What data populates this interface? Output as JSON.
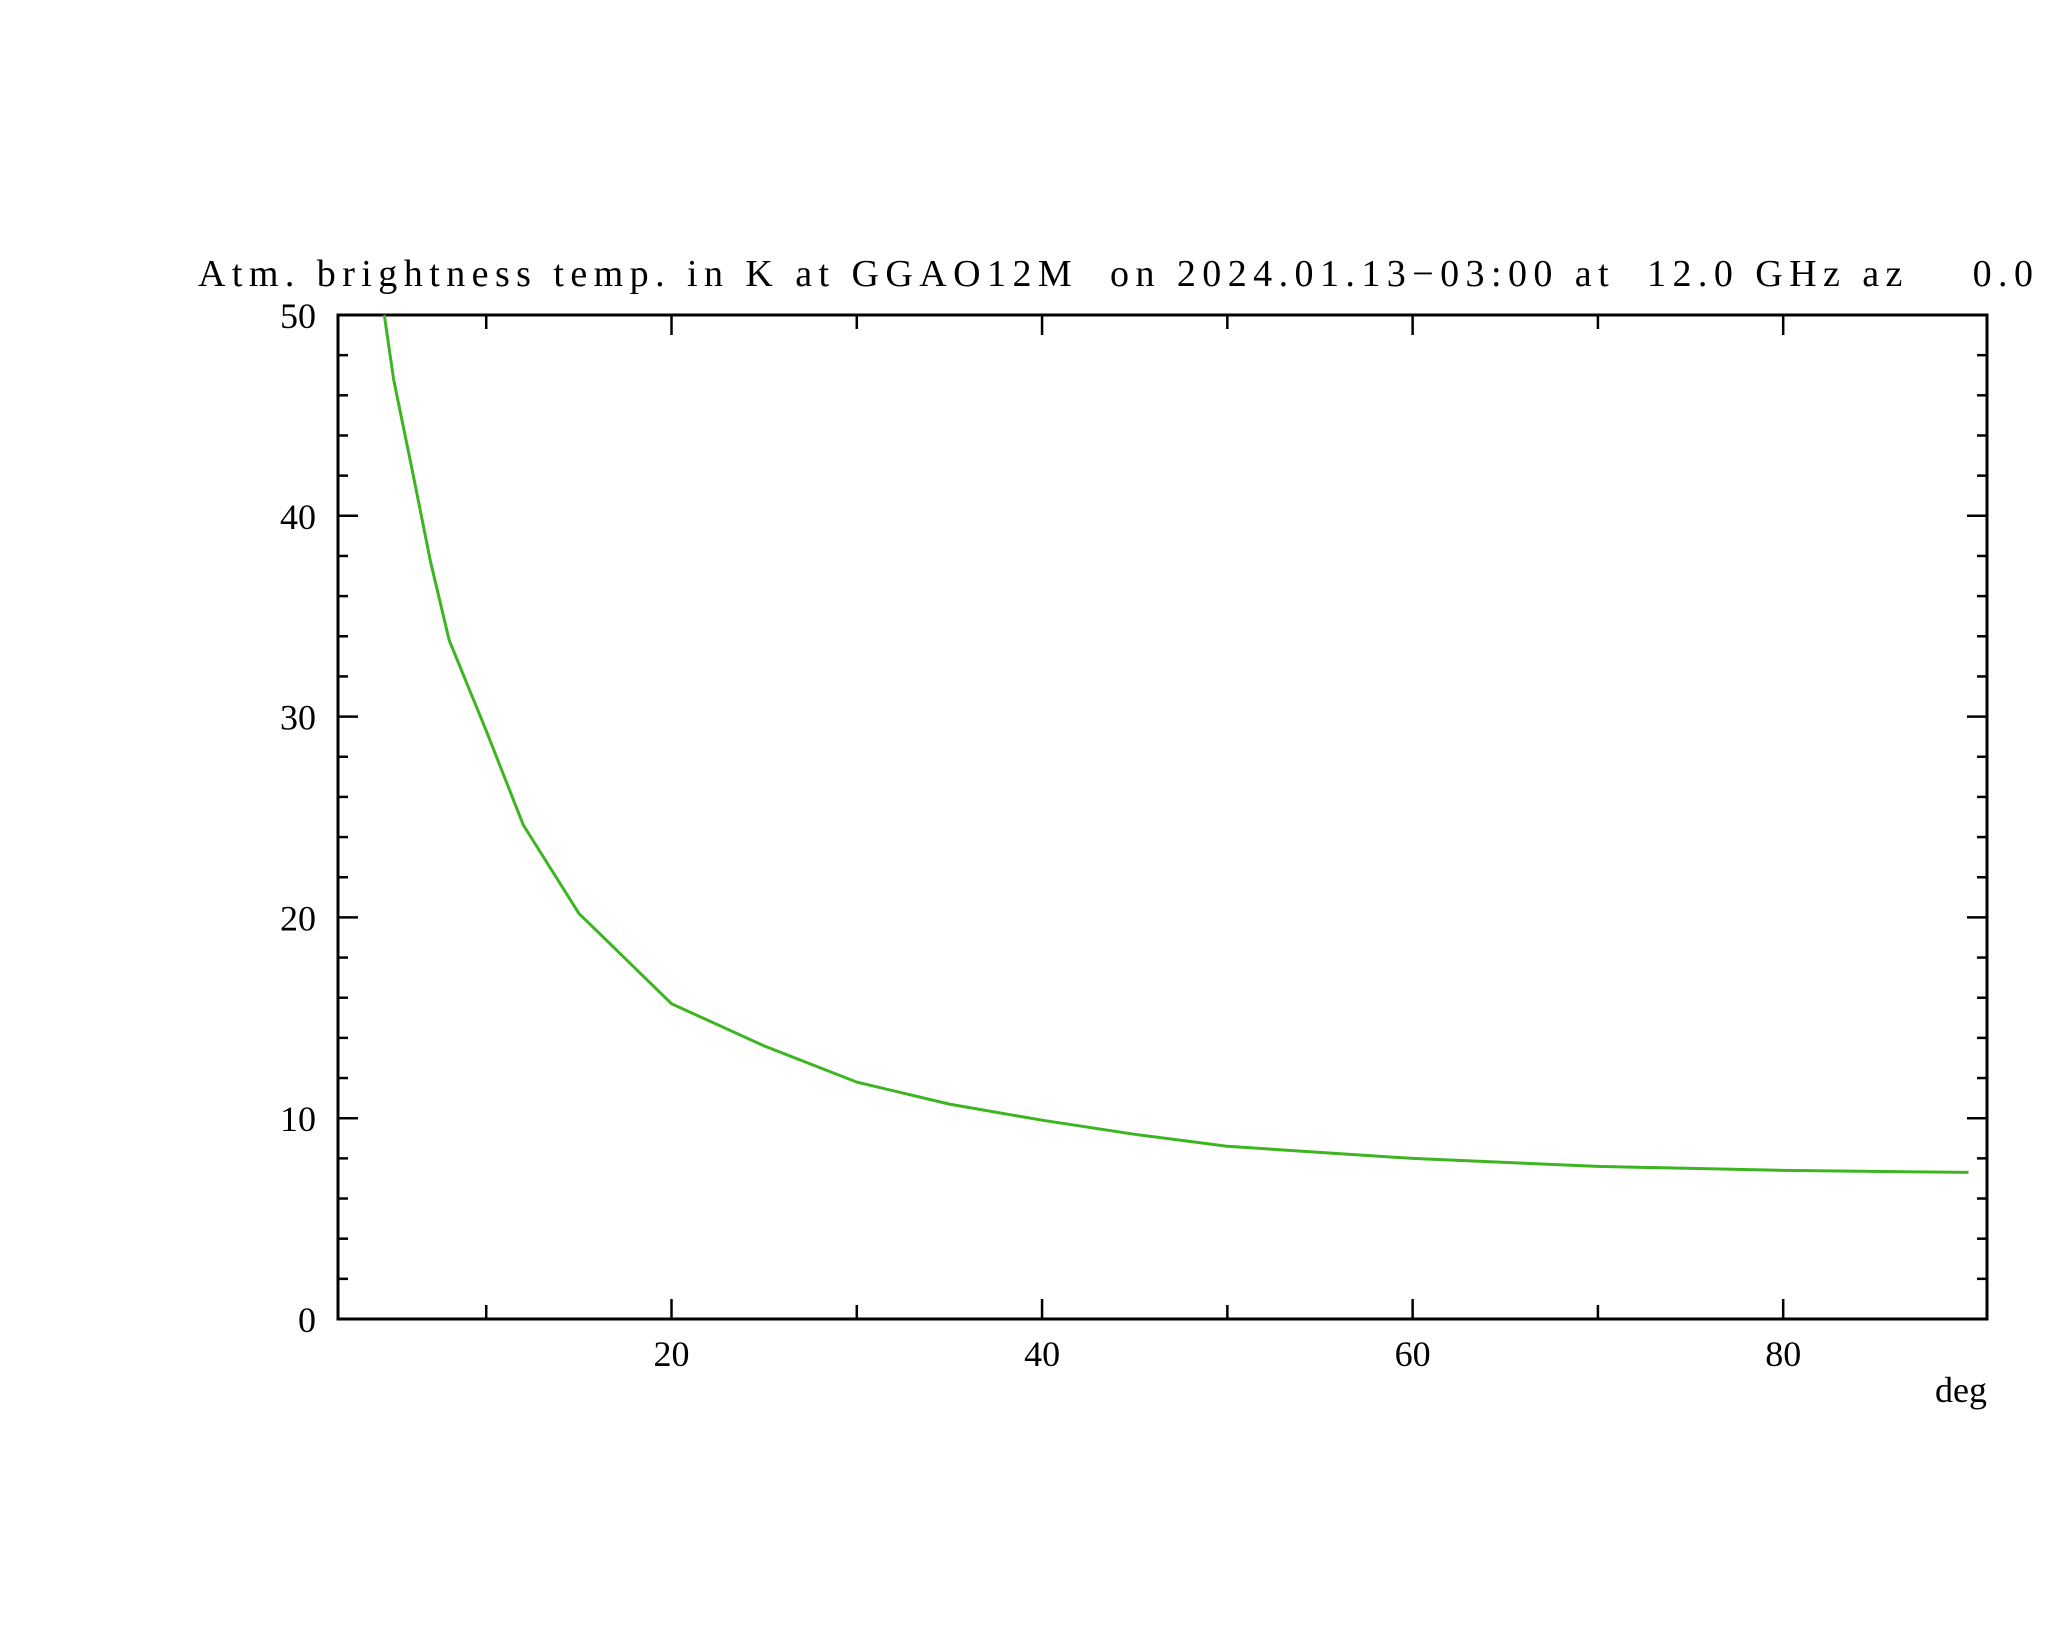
{
  "chart_data": {
    "type": "line",
    "title": "Atm. brightness temp. in K at GGAO12M  on 2024.01.13−03:00 at  12.0 GHz az    0.0",
    "x_label": "deg",
    "xlim": [
      2,
      91
    ],
    "ylim": [
      0,
      50
    ],
    "xticks": [
      20,
      40,
      60,
      80
    ],
    "xticks_minor": [
      10,
      30,
      50,
      70
    ],
    "yticks": [
      0,
      10,
      20,
      30,
      40,
      50
    ],
    "yticks_minor": [
      2,
      4,
      6,
      8,
      12,
      14,
      16,
      18,
      22,
      24,
      26,
      28,
      32,
      34,
      36,
      38,
      42,
      44,
      46,
      48
    ],
    "series": [
      {
        "color": "#3cb521",
        "x": [
          4.5,
          5,
          6,
          7,
          8,
          10,
          12,
          15,
          20,
          25,
          30,
          35,
          40,
          45,
          50,
          60,
          70,
          80,
          90
        ],
        "values": [
          50,
          46.8,
          42.3,
          37.7,
          33.8,
          29.3,
          24.6,
          20.2,
          15.7,
          13.6,
          11.8,
          10.7,
          9.9,
          9.2,
          8.6,
          8.0,
          7.6,
          7.4,
          7.3
        ]
      }
    ]
  }
}
